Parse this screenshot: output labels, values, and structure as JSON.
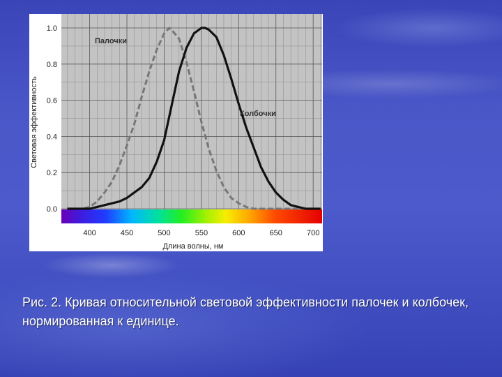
{
  "caption": "Рис. 2. Кривая относительной световой эффективности палочек и колбочек, нормированная к единице.",
  "chart_data": {
    "type": "line",
    "xlabel": "Длина волны, нм",
    "ylabel": "Световая эффективность",
    "xlim": [
      362,
      712
    ],
    "ylim": [
      0,
      1.0
    ],
    "x_ticks": [
      "400",
      "450",
      "500",
      "550",
      "600",
      "650",
      "700"
    ],
    "y_ticks": [
      "0.0",
      "0.2",
      "0.4",
      "0.6",
      "0.8",
      "1.0"
    ],
    "grid": true,
    "spectrum_band": true,
    "series": [
      {
        "name": "Палочки",
        "style": "dashed",
        "color": "#777777",
        "x": [
          370,
          380,
          390,
          400,
          410,
          420,
          430,
          440,
          450,
          460,
          470,
          480,
          490,
          500,
          507,
          510,
          520,
          530,
          540,
          550,
          560,
          570,
          580,
          590,
          600,
          610,
          620,
          630,
          640,
          650,
          660,
          670,
          680,
          690,
          700
        ],
        "y": [
          0.0,
          0.0,
          0.0,
          0.01,
          0.04,
          0.09,
          0.15,
          0.24,
          0.35,
          0.47,
          0.62,
          0.76,
          0.88,
          0.97,
          1.0,
          0.99,
          0.94,
          0.81,
          0.65,
          0.48,
          0.33,
          0.21,
          0.12,
          0.06,
          0.03,
          0.01,
          0.0,
          0.0,
          0.0,
          0.0,
          0.0,
          0.0,
          0.0,
          0.0,
          0.0
        ]
      },
      {
        "name": "Колбочки",
        "style": "solid",
        "color": "#111111",
        "x": [
          370,
          380,
          390,
          400,
          410,
          420,
          430,
          440,
          450,
          460,
          470,
          480,
          490,
          500,
          510,
          520,
          530,
          540,
          550,
          555,
          560,
          570,
          580,
          590,
          600,
          610,
          620,
          630,
          640,
          650,
          660,
          670,
          680,
          690,
          700,
          710
        ],
        "y": [
          0.0,
          0.0,
          0.0,
          0.0,
          0.01,
          0.02,
          0.03,
          0.04,
          0.06,
          0.09,
          0.12,
          0.17,
          0.26,
          0.38,
          0.57,
          0.76,
          0.89,
          0.97,
          1.0,
          1.0,
          0.99,
          0.95,
          0.85,
          0.72,
          0.58,
          0.45,
          0.34,
          0.23,
          0.15,
          0.09,
          0.05,
          0.02,
          0.01,
          0.0,
          0.0,
          0.0
        ]
      }
    ]
  }
}
